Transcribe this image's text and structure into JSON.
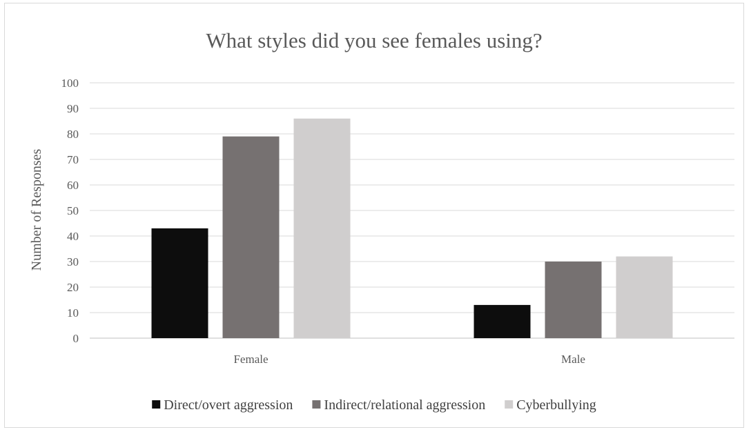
{
  "chart_data": {
    "type": "bar",
    "title": "What styles did you see females using?",
    "xlabel": "",
    "ylabel": "Number of Responses",
    "categories": [
      "Female",
      "Male"
    ],
    "series": [
      {
        "name": "Direct/overt aggression",
        "color": "#0d0d0d",
        "values": [
          43,
          13
        ]
      },
      {
        "name": "Indirect/relational aggression",
        "color": "#767171",
        "values": [
          79,
          30
        ]
      },
      {
        "name": "Cyberbullying",
        "color": "#d0cece",
        "values": [
          86,
          32
        ]
      }
    ],
    "ylim": [
      0,
      100
    ],
    "ytick_step": 10,
    "grid": true,
    "legend": "bottom"
  }
}
